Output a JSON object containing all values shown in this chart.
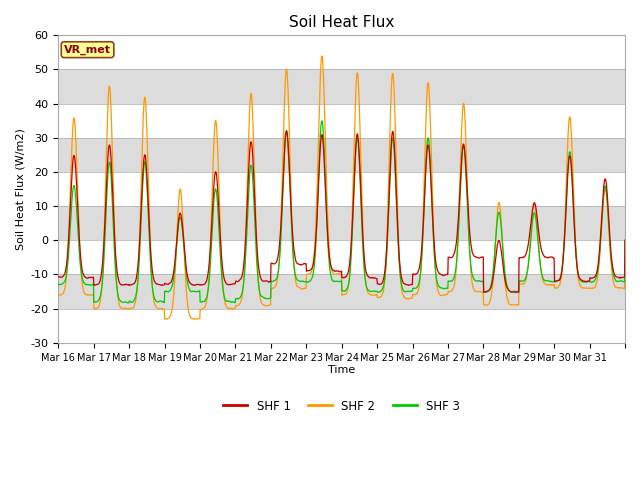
{
  "title": "Soil Heat Flux",
  "ylabel": "Soil Heat Flux (W/m2)",
  "xlabel": "Time",
  "ylim": [
    -30,
    60
  ],
  "annotation": "VR_met",
  "legend": [
    "SHF 1",
    "SHF 2",
    "SHF 3"
  ],
  "colors": [
    "#cc0000",
    "#ff9900",
    "#00cc00"
  ],
  "xtick_labels": [
    "Mar 16",
    "Mar 17",
    "Mar 18",
    "Mar 19",
    "Mar 20",
    "Mar 21",
    "Mar 22",
    "Mar 23",
    "Mar 24",
    "Mar 25",
    "Mar 26",
    "Mar 27",
    "Mar 28",
    "Mar 29",
    "Mar 30",
    "Mar 31"
  ],
  "yticks": [
    -30,
    -20,
    -10,
    0,
    10,
    20,
    30,
    40,
    50,
    60
  ],
  "band_colors": [
    "#ffffff",
    "#e8e8e8",
    "#ffffff",
    "#e8e8e8",
    "#ffffff",
    "#e8e8e8",
    "#ffffff",
    "#e8e8e8",
    "#ffffff"
  ],
  "shf1_daily_peaks": [
    25,
    28,
    25,
    8,
    20,
    29,
    32,
    31,
    31,
    32,
    28,
    28,
    0,
    11,
    25,
    18
  ],
  "shf2_daily_peaks": [
    36,
    45,
    42,
    15,
    35,
    43,
    50,
    54,
    49,
    49,
    46,
    40,
    11,
    11,
    36,
    15
  ],
  "shf3_daily_peaks": [
    16,
    23,
    23,
    7,
    15,
    22,
    32,
    35,
    30,
    30,
    30,
    28,
    8,
    8,
    26,
    16
  ],
  "shf1_daily_troughs": [
    -11,
    -13,
    -13,
    -13,
    -13,
    -12,
    -7,
    -9,
    -11,
    -13,
    -10,
    -5,
    -15,
    -5,
    -12,
    -11
  ],
  "shf2_daily_troughs": [
    -16,
    -20,
    -20,
    -23,
    -20,
    -19,
    -14,
    -10,
    -16,
    -17,
    -16,
    -15,
    -19,
    -13,
    -14,
    -14
  ],
  "shf3_daily_troughs": [
    -13,
    -18,
    -18,
    -15,
    -18,
    -17,
    -12,
    -12,
    -15,
    -15,
    -14,
    -12,
    -15,
    -12,
    -12,
    -12
  ],
  "points_per_day": 96
}
